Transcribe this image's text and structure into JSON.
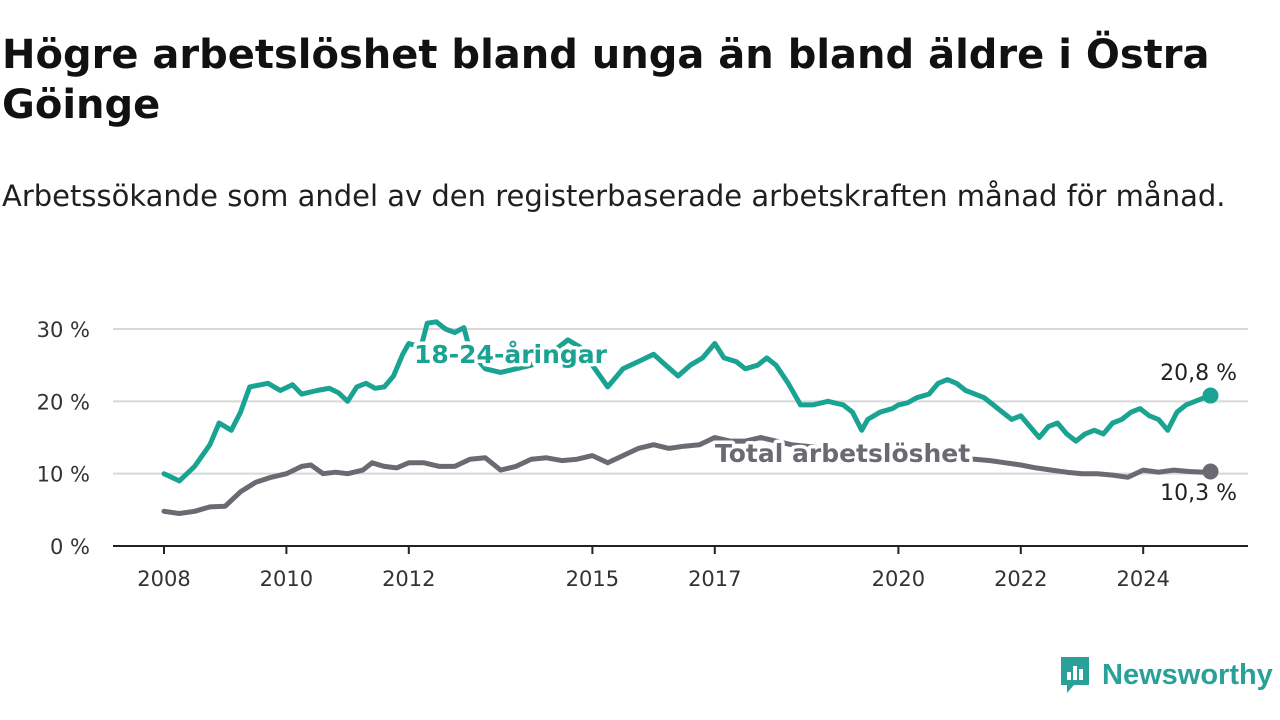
{
  "title": "Högre arbetslöshet bland unga än bland äldre i Östra Göinge",
  "subtitle": "Arbetssökande som andel av den registerbaserade arbetskraften månad för månad.",
  "brand": "Newsworthy",
  "colors": {
    "young": "#1aa392",
    "total": "#6b6a72",
    "grid": "#d8d8d8",
    "axis": "#222222",
    "brand": "#2aa198"
  },
  "chart_data": {
    "type": "line",
    "x_label_ticks": [
      "2008",
      "2010",
      "2012",
      "2015",
      "2017",
      "2020",
      "2022",
      "2024"
    ],
    "y_tick_labels": [
      "0 %",
      "10 %",
      "20 %",
      "30 %"
    ],
    "y_ticks": [
      0,
      10,
      20,
      30
    ],
    "ylim": [
      0,
      30
    ],
    "grid": true,
    "series": [
      {
        "name": "18-24-åringar",
        "end_label": "20,8 %",
        "points": [
          [
            2008.0,
            10.0
          ],
          [
            2008.25,
            9.0
          ],
          [
            2008.5,
            11.0
          ],
          [
            2008.75,
            14.0
          ],
          [
            2008.9,
            17.0
          ],
          [
            2009.1,
            16.0
          ],
          [
            2009.25,
            18.5
          ],
          [
            2009.4,
            22.0
          ],
          [
            2009.7,
            22.5
          ],
          [
            2009.9,
            21.5
          ],
          [
            2010.1,
            22.3
          ],
          [
            2010.25,
            21.0
          ],
          [
            2010.5,
            21.5
          ],
          [
            2010.7,
            21.8
          ],
          [
            2010.85,
            21.2
          ],
          [
            2011.0,
            20.0
          ],
          [
            2011.15,
            22.0
          ],
          [
            2011.3,
            22.5
          ],
          [
            2011.45,
            21.8
          ],
          [
            2011.6,
            22.0
          ],
          [
            2011.75,
            23.5
          ],
          [
            2011.9,
            26.5
          ],
          [
            2012.0,
            28.0
          ],
          [
            2012.2,
            27.5
          ],
          [
            2012.3,
            30.8
          ],
          [
            2012.45,
            31.0
          ],
          [
            2012.6,
            30.0
          ],
          [
            2012.75,
            29.5
          ],
          [
            2012.9,
            30.2
          ],
          [
            2013.0,
            27.0
          ],
          [
            2013.25,
            24.5
          ],
          [
            2013.5,
            24.0
          ],
          [
            2013.75,
            24.5
          ],
          [
            2014.0,
            25.0
          ],
          [
            2014.25,
            26.5
          ],
          [
            2014.45,
            27.5
          ],
          [
            2014.6,
            28.5
          ],
          [
            2014.8,
            27.5
          ],
          [
            2015.0,
            25.0
          ],
          [
            2015.25,
            22.0
          ],
          [
            2015.5,
            24.5
          ],
          [
            2015.75,
            25.5
          ],
          [
            2016.0,
            26.5
          ],
          [
            2016.2,
            25.0
          ],
          [
            2016.4,
            23.5
          ],
          [
            2016.6,
            25.0
          ],
          [
            2016.8,
            26.0
          ],
          [
            2017.0,
            28.0
          ],
          [
            2017.15,
            26.0
          ],
          [
            2017.35,
            25.5
          ],
          [
            2017.5,
            24.5
          ],
          [
            2017.7,
            25.0
          ],
          [
            2017.85,
            26.0
          ],
          [
            2018.0,
            25.0
          ],
          [
            2018.2,
            22.5
          ],
          [
            2018.4,
            19.5
          ],
          [
            2018.6,
            19.5
          ],
          [
            2018.85,
            20.0
          ],
          [
            2019.1,
            19.5
          ],
          [
            2019.25,
            18.5
          ],
          [
            2019.4,
            16.0
          ],
          [
            2019.5,
            17.5
          ],
          [
            2019.7,
            18.5
          ],
          [
            2019.9,
            19.0
          ],
          [
            2020.0,
            19.5
          ],
          [
            2020.15,
            19.8
          ],
          [
            2020.3,
            20.5
          ],
          [
            2020.5,
            21.0
          ],
          [
            2020.65,
            22.5
          ],
          [
            2020.8,
            23.0
          ],
          [
            2020.95,
            22.5
          ],
          [
            2021.1,
            21.5
          ],
          [
            2021.25,
            21.0
          ],
          [
            2021.4,
            20.5
          ],
          [
            2021.55,
            19.5
          ],
          [
            2021.7,
            18.5
          ],
          [
            2021.85,
            17.5
          ],
          [
            2022.0,
            18.0
          ],
          [
            2022.15,
            16.5
          ],
          [
            2022.3,
            15.0
          ],
          [
            2022.45,
            16.5
          ],
          [
            2022.6,
            17.0
          ],
          [
            2022.75,
            15.5
          ],
          [
            2022.9,
            14.5
          ],
          [
            2023.05,
            15.5
          ],
          [
            2023.2,
            16.0
          ],
          [
            2023.35,
            15.5
          ],
          [
            2023.5,
            17.0
          ],
          [
            2023.65,
            17.5
          ],
          [
            2023.8,
            18.5
          ],
          [
            2023.95,
            19.0
          ],
          [
            2024.1,
            18.0
          ],
          [
            2024.25,
            17.5
          ],
          [
            2024.4,
            16.0
          ],
          [
            2024.55,
            18.5
          ],
          [
            2024.7,
            19.5
          ],
          [
            2024.85,
            20.0
          ],
          [
            2025.0,
            20.5
          ],
          [
            2025.1,
            20.8
          ]
        ]
      },
      {
        "name": "Total arbetslöshet",
        "end_label": "10,3 %",
        "points": [
          [
            2008.0,
            4.8
          ],
          [
            2008.25,
            4.5
          ],
          [
            2008.5,
            4.8
          ],
          [
            2008.75,
            5.4
          ],
          [
            2009.0,
            5.5
          ],
          [
            2009.25,
            7.5
          ],
          [
            2009.5,
            8.8
          ],
          [
            2009.75,
            9.5
          ],
          [
            2010.0,
            10.0
          ],
          [
            2010.25,
            11.0
          ],
          [
            2010.4,
            11.2
          ],
          [
            2010.6,
            10.0
          ],
          [
            2010.8,
            10.2
          ],
          [
            2011.0,
            10.0
          ],
          [
            2011.25,
            10.5
          ],
          [
            2011.4,
            11.5
          ],
          [
            2011.6,
            11.0
          ],
          [
            2011.8,
            10.8
          ],
          [
            2012.0,
            11.5
          ],
          [
            2012.25,
            11.5
          ],
          [
            2012.5,
            11.0
          ],
          [
            2012.75,
            11.0
          ],
          [
            2013.0,
            12.0
          ],
          [
            2013.25,
            12.2
          ],
          [
            2013.5,
            10.5
          ],
          [
            2013.75,
            11.0
          ],
          [
            2014.0,
            12.0
          ],
          [
            2014.25,
            12.2
          ],
          [
            2014.5,
            11.8
          ],
          [
            2014.75,
            12.0
          ],
          [
            2015.0,
            12.5
          ],
          [
            2015.25,
            11.5
          ],
          [
            2015.5,
            12.5
          ],
          [
            2015.75,
            13.5
          ],
          [
            2016.0,
            14.0
          ],
          [
            2016.25,
            13.5
          ],
          [
            2016.5,
            13.8
          ],
          [
            2016.75,
            14.0
          ],
          [
            2017.0,
            15.0
          ],
          [
            2017.25,
            14.5
          ],
          [
            2017.5,
            14.5
          ],
          [
            2017.75,
            15.0
          ],
          [
            2018.0,
            14.5
          ],
          [
            2018.25,
            14.0
          ],
          [
            2018.5,
            13.8
          ],
          [
            2018.75,
            13.5
          ],
          [
            2019.0,
            13.2
          ],
          [
            2019.25,
            13.0
          ],
          [
            2019.5,
            12.8
          ],
          [
            2019.75,
            12.5
          ],
          [
            2020.0,
            12.8
          ],
          [
            2020.25,
            13.0
          ],
          [
            2020.5,
            12.5
          ],
          [
            2020.75,
            12.2
          ],
          [
            2021.0,
            12.0
          ],
          [
            2021.25,
            12.0
          ],
          [
            2021.5,
            11.8
          ],
          [
            2021.75,
            11.5
          ],
          [
            2022.0,
            11.2
          ],
          [
            2022.25,
            10.8
          ],
          [
            2022.5,
            10.5
          ],
          [
            2022.75,
            10.2
          ],
          [
            2023.0,
            10.0
          ],
          [
            2023.25,
            10.0
          ],
          [
            2023.5,
            9.8
          ],
          [
            2023.75,
            9.5
          ],
          [
            2024.0,
            10.5
          ],
          [
            2024.25,
            10.2
          ],
          [
            2024.5,
            10.5
          ],
          [
            2024.75,
            10.3
          ],
          [
            2025.0,
            10.2
          ],
          [
            2025.1,
            10.3
          ]
        ]
      }
    ]
  }
}
